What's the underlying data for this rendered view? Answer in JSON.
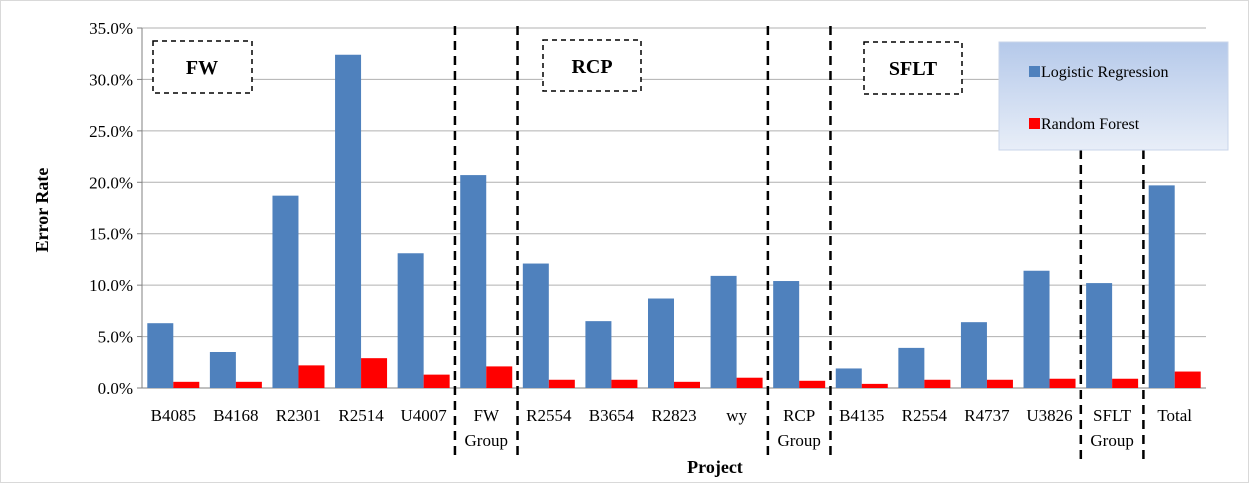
{
  "chart_data": {
    "type": "bar",
    "xlabel": "Project",
    "ylabel": "Error Rate",
    "ylim": [
      0,
      35
    ],
    "y_ticks": [
      "0.0%",
      "5.0%",
      "10.0%",
      "15.0%",
      "20.0%",
      "25.0%",
      "30.0%",
      "35.0%"
    ],
    "grid": true,
    "legend_position": "top-right",
    "categories": [
      [
        "B4085"
      ],
      [
        "B4168"
      ],
      [
        "R2301"
      ],
      [
        "R2514"
      ],
      [
        "U4007"
      ],
      [
        "FW",
        "Group"
      ],
      [
        "R2554"
      ],
      [
        "B3654"
      ],
      [
        "R2823"
      ],
      [
        "wy"
      ],
      [
        "RCP",
        "Group"
      ],
      [
        "B4135"
      ],
      [
        "R2554"
      ],
      [
        "R4737"
      ],
      [
        "U3826"
      ],
      [
        "SFLT",
        "Group"
      ],
      [
        "Total"
      ]
    ],
    "series": [
      {
        "name": "Logistic Regression",
        "color": "#4f81bd",
        "values": [
          6.3,
          3.5,
          18.7,
          32.4,
          13.1,
          20.7,
          12.1,
          6.5,
          8.7,
          10.9,
          10.4,
          1.9,
          3.9,
          6.4,
          11.4,
          10.2,
          19.7
        ]
      },
      {
        "name": "Random Forest",
        "color": "#ff0000",
        "values": [
          0.6,
          0.6,
          2.2,
          2.9,
          1.3,
          2.1,
          0.8,
          0.8,
          0.6,
          1.0,
          0.7,
          0.4,
          0.8,
          0.8,
          0.9,
          0.9,
          1.6
        ]
      }
    ],
    "group_labels": [
      "FW",
      "RCP",
      "SFLT"
    ]
  }
}
